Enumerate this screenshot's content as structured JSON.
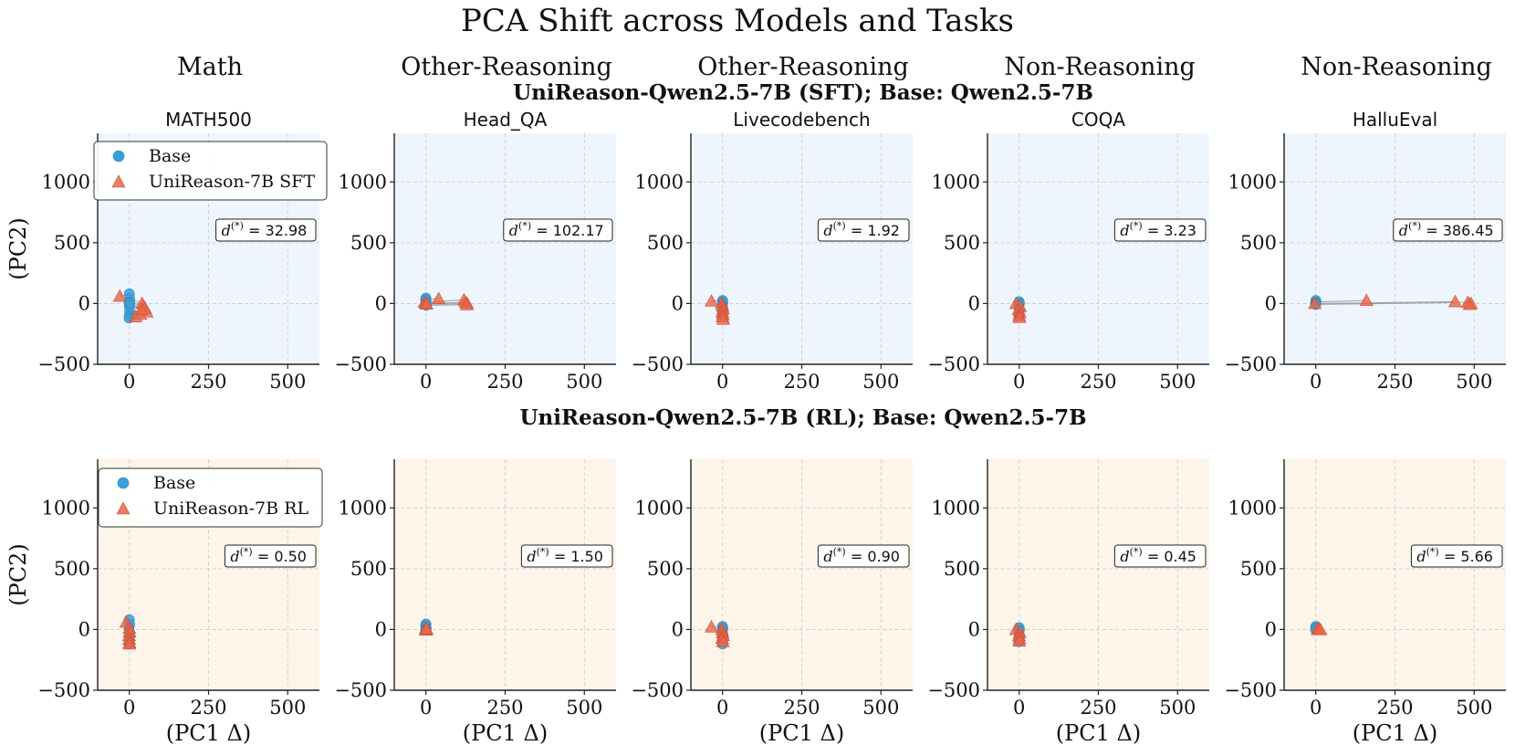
{
  "title": "PCA Shift across Models and Tasks",
  "categories": [
    "Math",
    "Other-Reasoning",
    "Other-Reasoning",
    "Non-Reasoning",
    "Non-Reasoning"
  ],
  "x_axis_label": "(PC1 Δ)",
  "y_axis_label": "(PC2)",
  "colors": {
    "base": "#3a9fd8",
    "model": "#e8664a",
    "bg_sft": "#eff5fd",
    "bg_rl": "#fdf4ea",
    "link": "#8a8a8a"
  },
  "chart_data": [
    {
      "row_title": "UniReason-Qwen2.5-7B (SFT); Base: Qwen2.5-7B",
      "legend": {
        "base": "Base",
        "model": "UniReason-7B SFT"
      },
      "panels": [
        {
          "type": "scatter",
          "category": "Math",
          "title": "MATH500",
          "d_value": "32.98",
          "xlim": [
            -100,
            600
          ],
          "ylim": [
            -500,
            1400
          ],
          "xticks": [
            0,
            250,
            500
          ],
          "yticks": [
            -500,
            0,
            500,
            1000
          ],
          "base": [
            [
              0,
              80
            ],
            [
              1,
              40
            ],
            [
              -1,
              10
            ],
            [
              0,
              -20
            ],
            [
              1,
              -60
            ],
            [
              0,
              -100
            ],
            [
              -1,
              -120
            ],
            [
              2,
              0
            ]
          ],
          "model": [
            [
              -30,
              60
            ],
            [
              40,
              0
            ],
            [
              45,
              -20
            ],
            [
              50,
              -40
            ],
            [
              55,
              -70
            ],
            [
              35,
              -90
            ],
            [
              20,
              -110
            ],
            [
              38,
              -50
            ]
          ]
        },
        {
          "type": "scatter",
          "category": "Other-Reasoning",
          "title": "Head_QA",
          "d_value": "102.17",
          "xlim": [
            -100,
            600
          ],
          "ylim": [
            -500,
            1400
          ],
          "xticks": [
            0,
            250,
            500
          ],
          "yticks": [
            -500,
            0,
            500,
            1000
          ],
          "base": [
            [
              0,
              45
            ],
            [
              -1,
              30
            ],
            [
              1,
              10
            ],
            [
              0,
              0
            ],
            [
              -2,
              -8
            ],
            [
              1,
              -15
            ]
          ],
          "model": [
            [
              -5,
              10
            ],
            [
              40,
              40
            ],
            [
              120,
              30
            ],
            [
              125,
              10
            ],
            [
              130,
              0
            ],
            [
              128,
              -10
            ],
            [
              0,
              0
            ],
            [
              2,
              -5
            ]
          ]
        },
        {
          "type": "scatter",
          "category": "Other-Reasoning",
          "title": "Livecodebench",
          "d_value": "1.92",
          "xlim": [
            -100,
            600
          ],
          "ylim": [
            -500,
            1400
          ],
          "xticks": [
            0,
            250,
            500
          ],
          "yticks": [
            -500,
            0,
            500,
            1000
          ],
          "base": [
            [
              0,
              25
            ],
            [
              1,
              10
            ],
            [
              -1,
              -10
            ],
            [
              0,
              -30
            ],
            [
              1,
              -50
            ],
            [
              0,
              -70
            ],
            [
              -1,
              -95
            ],
            [
              0,
              -110
            ]
          ],
          "model": [
            [
              -35,
              20
            ],
            [
              -3,
              0
            ],
            [
              0,
              -20
            ],
            [
              2,
              -45
            ],
            [
              -1,
              -70
            ],
            [
              1,
              -90
            ],
            [
              0,
              -110
            ],
            [
              2,
              -130
            ]
          ]
        },
        {
          "type": "scatter",
          "category": "Non-Reasoning",
          "title": "COQA",
          "d_value": "3.23",
          "xlim": [
            -100,
            600
          ],
          "ylim": [
            -500,
            1400
          ],
          "xticks": [
            0,
            250,
            500
          ],
          "yticks": [
            -500,
            0,
            500,
            1000
          ],
          "base": [
            [
              0,
              15
            ],
            [
              1,
              0
            ],
            [
              -1,
              -20
            ],
            [
              0,
              -40
            ],
            [
              1,
              -60
            ],
            [
              0,
              -80
            ],
            [
              -1,
              -100
            ]
          ],
          "model": [
            [
              -10,
              0
            ],
            [
              3,
              -25
            ],
            [
              -2,
              -50
            ],
            [
              2,
              -75
            ],
            [
              0,
              -100
            ],
            [
              1,
              -115
            ]
          ]
        },
        {
          "type": "scatter",
          "category": "Non-Reasoning",
          "title": "HalluEval",
          "d_value": "386.45",
          "xlim": [
            -100,
            600
          ],
          "ylim": [
            -500,
            1400
          ],
          "xticks": [
            0,
            250,
            500
          ],
          "yticks": [
            -500,
            0,
            500,
            1000
          ],
          "base": [
            [
              0,
              25
            ],
            [
              1,
              12
            ],
            [
              -1,
              0
            ],
            [
              0,
              -8
            ]
          ],
          "model": [
            [
              -3,
              0
            ],
            [
              160,
              25
            ],
            [
              440,
              15
            ],
            [
              480,
              10
            ],
            [
              490,
              0
            ],
            [
              485,
              -8
            ]
          ]
        }
      ]
    },
    {
      "row_title": "UniReason-Qwen2.5-7B (RL); Base: Qwen2.5-7B",
      "legend": {
        "base": "Base",
        "model": "UniReason-7B RL"
      },
      "panels": [
        {
          "type": "scatter",
          "category": "Math",
          "title": "",
          "d_value": "0.50",
          "xlim": [
            -100,
            600
          ],
          "ylim": [
            -500,
            1400
          ],
          "xticks": [
            0,
            250,
            500
          ],
          "yticks": [
            -500,
            0,
            500,
            1000
          ],
          "base": [
            [
              0,
              80
            ],
            [
              1,
              40
            ],
            [
              -1,
              10
            ],
            [
              0,
              -20
            ],
            [
              1,
              -60
            ],
            [
              0,
              -100
            ],
            [
              -1,
              -120
            ]
          ],
          "model": [
            [
              -10,
              60
            ],
            [
              0,
              10
            ],
            [
              1,
              -20
            ],
            [
              -1,
              -50
            ],
            [
              0,
              -80
            ],
            [
              1,
              -110
            ],
            [
              0,
              -120
            ]
          ]
        },
        {
          "type": "scatter",
          "category": "Other-Reasoning",
          "title": "",
          "d_value": "1.50",
          "xlim": [
            -100,
            600
          ],
          "ylim": [
            -500,
            1400
          ],
          "xticks": [
            0,
            250,
            500
          ],
          "yticks": [
            -500,
            0,
            500,
            1000
          ],
          "base": [
            [
              0,
              45
            ],
            [
              -1,
              30
            ],
            [
              1,
              10
            ],
            [
              0,
              0
            ],
            [
              -1,
              -5
            ]
          ],
          "model": [
            [
              0,
              10
            ],
            [
              1,
              0
            ],
            [
              -1,
              -5
            ],
            [
              2,
              5
            ]
          ]
        },
        {
          "type": "scatter",
          "category": "Other-Reasoning",
          "title": "",
          "d_value": "0.90",
          "xlim": [
            -100,
            600
          ],
          "ylim": [
            -500,
            1400
          ],
          "xticks": [
            0,
            250,
            500
          ],
          "yticks": [
            -500,
            0,
            500,
            1000
          ],
          "base": [
            [
              0,
              25
            ],
            [
              1,
              10
            ],
            [
              -1,
              -10
            ],
            [
              0,
              -30
            ],
            [
              1,
              -50
            ],
            [
              0,
              -70
            ],
            [
              -1,
              -100
            ],
            [
              0,
              -120
            ]
          ],
          "model": [
            [
              -35,
              20
            ],
            [
              -2,
              0
            ],
            [
              0,
              -25
            ],
            [
              2,
              -50
            ],
            [
              -1,
              -75
            ],
            [
              1,
              -100
            ]
          ]
        },
        {
          "type": "scatter",
          "category": "Non-Reasoning",
          "title": "",
          "d_value": "0.45",
          "xlim": [
            -100,
            600
          ],
          "ylim": [
            -500,
            1400
          ],
          "xticks": [
            0,
            250,
            500
          ],
          "yticks": [
            -500,
            0,
            500,
            1000
          ],
          "base": [
            [
              0,
              15
            ],
            [
              1,
              0
            ],
            [
              -1,
              -20
            ],
            [
              0,
              -40
            ],
            [
              1,
              -60
            ],
            [
              0,
              -80
            ],
            [
              -1,
              -100
            ]
          ],
          "model": [
            [
              -10,
              0
            ],
            [
              2,
              -25
            ],
            [
              -1,
              -50
            ],
            [
              1,
              -75
            ],
            [
              0,
              -95
            ]
          ]
        },
        {
          "type": "scatter",
          "category": "Non-Reasoning",
          "title": "",
          "d_value": "5.66",
          "xlim": [
            -100,
            600
          ],
          "ylim": [
            -500,
            1400
          ],
          "xticks": [
            0,
            250,
            500
          ],
          "yticks": [
            -500,
            0,
            500,
            1000
          ],
          "base": [
            [
              0,
              25
            ],
            [
              1,
              12
            ],
            [
              -1,
              0
            ]
          ],
          "model": [
            [
              5,
              0
            ],
            [
              10,
              8
            ],
            [
              15,
              -2
            ]
          ]
        }
      ]
    }
  ]
}
